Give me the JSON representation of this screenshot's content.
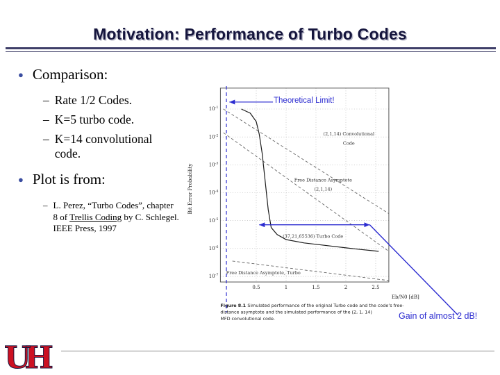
{
  "slide": {
    "title": "Motivation: Performance of Turbo Codes",
    "bullet_marker": "●",
    "dash_marker": "–",
    "bullets": [
      {
        "label": "Comparison:",
        "subs": [
          "Rate 1/2 Codes.",
          "K=5 turbo code.",
          "K=14 convolutional code."
        ]
      },
      {
        "label": "Plot is from:",
        "citation": {
          "pre": "L. Perez, “Turbo Codes”, chapter 8 of ",
          "underlined": "Trellis Coding",
          "post": " by C. Schlegel. IEEE Press, 1997"
        }
      }
    ]
  },
  "annotations": {
    "theoretical_limit": "Theoretical Limit!",
    "gain": "Gain of almost 2 dB!",
    "color": "#2b2bd0"
  },
  "logo": {
    "text": "UH",
    "color": "#cc1122"
  },
  "chart_data": {
    "type": "line",
    "title": "",
    "xlabel": "Eb/N0 [dB]",
    "ylabel": "Bit Error Probability",
    "xlim": [
      -0.1,
      2.72
    ],
    "ylim_log": [
      -0.25,
      -7.2
    ],
    "x_ticks": [
      0.5,
      1,
      1.5,
      2,
      2.5
    ],
    "y_tick_exponents": [
      -1,
      -2,
      -3,
      -4,
      -5,
      -6,
      -7
    ],
    "grid": "dotted",
    "series": [
      {
        "name": "(2,1,14) Convolutional Code",
        "dash": "4 3",
        "color": "#666666",
        "points": [
          [
            -0.05,
            -1.0
          ],
          [
            2.72,
            -4.75
          ]
        ]
      },
      {
        "name": "Free Distance Asymptote (2,1,14)",
        "dash": "4 3",
        "color": "#666666",
        "points": [
          [
            -0.05,
            -1.85
          ],
          [
            2.72,
            -6.1
          ]
        ]
      },
      {
        "name": "(37,21,65536) Turbo Code",
        "dash": null,
        "color": "#1a1a1a",
        "points": [
          [
            0.25,
            -1.0
          ],
          [
            0.4,
            -1.15
          ],
          [
            0.5,
            -1.45
          ],
          [
            0.55,
            -1.9
          ],
          [
            0.6,
            -2.6
          ],
          [
            0.65,
            -3.6
          ],
          [
            0.7,
            -4.6
          ],
          [
            0.75,
            -5.25
          ],
          [
            0.85,
            -5.5
          ],
          [
            1.0,
            -5.68
          ],
          [
            1.3,
            -5.8
          ],
          [
            1.7,
            -5.9
          ],
          [
            2.1,
            -6.0
          ],
          [
            2.55,
            -6.1
          ]
        ]
      },
      {
        "name": "Free Distance Asymptote, Turbo",
        "dash": "4 3",
        "color": "#666666",
        "points": [
          [
            0.1,
            -6.45
          ],
          [
            2.72,
            -7.15
          ]
        ]
      }
    ],
    "inner_labels": [
      {
        "text": "(2,1,14) Convolutional",
        "x": 2.05,
        "y": -1.95,
        "anchor": "middle"
      },
      {
        "text": "Code",
        "x": 2.05,
        "y": -2.28,
        "anchor": "middle"
      },
      {
        "text": "Free Distance Asymptote",
        "x": 1.62,
        "y": -3.6,
        "anchor": "middle"
      },
      {
        "text": "(2,1,14)",
        "x": 1.62,
        "y": -3.93,
        "anchor": "middle"
      },
      {
        "text": "(37,21,65536) Turbo Code",
        "x": 1.45,
        "y": -5.62,
        "anchor": "middle"
      },
      {
        "text": "Free Distance Asymptote, Turbo",
        "x": 0.62,
        "y": -6.92,
        "anchor": "middle"
      }
    ],
    "caption": {
      "bold": "Figure 8.1",
      "lines": [
        "Simulated performance of the original Turbo code and the code’s free-",
        "distance asymptote and the simulated performance of the (2, 1, 14)",
        "MFD convolutional code."
      ]
    },
    "overlay": {
      "color": "#2b2bd0",
      "vline_x_db": 0.0,
      "tl_arrow": {
        "from_db": 0.78,
        "to_db": 0.05,
        "y_log": -0.75
      },
      "gain_arrow": {
        "x1_db": 0.55,
        "x2_db": 2.4,
        "y_log": -5.15
      }
    }
  }
}
